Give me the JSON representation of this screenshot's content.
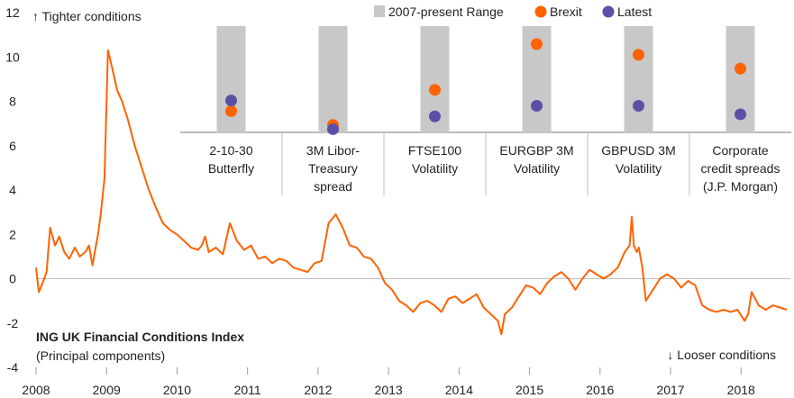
{
  "chart_data": [
    {
      "type": "line",
      "title": "ING UK Financial Conditions Index",
      "subtitle": "(Principal components)",
      "annotation_top": "↑ Tighter conditions",
      "annotation_bottom": "↓ Looser conditions",
      "ylim": [
        -4,
        12
      ],
      "yticks": [
        "-4",
        "-2",
        "0",
        "2",
        "4",
        "6",
        "8",
        "10",
        "12"
      ],
      "xlim": [
        2008.0,
        2018.7
      ],
      "xticks": [
        "2008",
        "2009",
        "2010",
        "2011",
        "2012",
        "2013",
        "2014",
        "2015",
        "2016",
        "2017",
        "2018"
      ],
      "line_color": "#ff6200",
      "series": [
        {
          "x": [
            2008.0,
            2008.04,
            2008.08,
            2008.15,
            2008.2,
            2008.27,
            2008.33,
            2008.4,
            2008.47,
            2008.55,
            2008.62,
            2008.7,
            2008.75,
            2008.8,
            2008.85,
            2008.88,
            2008.92,
            2008.97,
            2009.02,
            2009.08,
            2009.15,
            2009.22,
            2009.3,
            2009.4,
            2009.5,
            2009.6,
            2009.7,
            2009.8,
            2009.9,
            2010.0,
            2010.1,
            2010.2,
            2010.3,
            2010.35,
            2010.4,
            2010.45,
            2010.55,
            2010.65,
            2010.75,
            2010.85,
            2010.95,
            2011.05,
            2011.15,
            2011.25,
            2011.35,
            2011.45,
            2011.55,
            2011.65,
            2011.75,
            2011.85,
            2011.95,
            2012.05,
            2012.15,
            2012.25,
            2012.35,
            2012.45,
            2012.55,
            2012.65,
            2012.75,
            2012.85,
            2012.95,
            2013.05,
            2013.15,
            2013.25,
            2013.35,
            2013.45,
            2013.55,
            2013.65,
            2013.75,
            2013.85,
            2013.95,
            2014.05,
            2014.15,
            2014.25,
            2014.35,
            2014.45,
            2014.55,
            2014.6,
            2014.65,
            2014.75,
            2014.85,
            2014.95,
            2015.05,
            2015.15,
            2015.25,
            2015.35,
            2015.45,
            2015.55,
            2015.65,
            2015.75,
            2015.85,
            2015.95,
            2016.05,
            2016.15,
            2016.25,
            2016.35,
            2016.42,
            2016.45,
            2016.48,
            2016.52,
            2016.55,
            2016.6,
            2016.65,
            2016.75,
            2016.85,
            2016.95,
            2017.05,
            2017.15,
            2017.25,
            2017.35,
            2017.45,
            2017.55,
            2017.65,
            2017.75,
            2017.85,
            2017.95,
            2018.05,
            2018.1,
            2018.15,
            2018.25,
            2018.35,
            2018.45,
            2018.55,
            2018.65
          ],
          "y": [
            0.5,
            -0.6,
            -0.3,
            0.3,
            2.3,
            1.5,
            1.9,
            1.2,
            0.9,
            1.4,
            1.0,
            1.2,
            1.5,
            0.6,
            1.5,
            2.0,
            3.0,
            4.5,
            10.3,
            9.5,
            8.5,
            8.0,
            7.2,
            6.0,
            5.0,
            4.0,
            3.2,
            2.5,
            2.2,
            2.0,
            1.7,
            1.4,
            1.3,
            1.5,
            1.9,
            1.2,
            1.4,
            1.1,
            2.5,
            1.7,
            1.3,
            1.5,
            0.9,
            1.0,
            0.7,
            0.9,
            0.8,
            0.5,
            0.4,
            0.3,
            0.7,
            0.8,
            2.5,
            2.9,
            2.3,
            1.5,
            1.4,
            1.0,
            0.9,
            0.5,
            -0.2,
            -0.5,
            -1.0,
            -1.2,
            -1.5,
            -1.1,
            -1.0,
            -1.2,
            -1.5,
            -0.9,
            -0.8,
            -1.1,
            -0.9,
            -0.7,
            -1.3,
            -1.6,
            -1.9,
            -2.5,
            -1.6,
            -1.3,
            -0.8,
            -0.3,
            -0.4,
            -0.7,
            -0.2,
            0.1,
            0.3,
            0.0,
            -0.5,
            0.0,
            0.4,
            0.2,
            0.0,
            0.2,
            0.5,
            1.2,
            1.5,
            2.8,
            1.5,
            1.2,
            1.4,
            0.5,
            -1.0,
            -0.5,
            0.0,
            0.2,
            0.0,
            -0.4,
            -0.1,
            -0.3,
            -1.2,
            -1.4,
            -1.5,
            -1.4,
            -1.5,
            -1.4,
            -1.9,
            -1.6,
            -0.6,
            -1.2,
            -1.4,
            -1.2,
            -1.3,
            -1.4
          ]
        }
      ]
    },
    {
      "type": "range-dot",
      "legend": [
        {
          "label": "2007-present Range",
          "color": "#c8c8c8",
          "shape": "square"
        },
        {
          "label": "Brexit",
          "color": "#ff6200",
          "shape": "circle"
        },
        {
          "label": "Latest",
          "color": "#5a51a6",
          "shape": "circle"
        }
      ],
      "categories": [
        {
          "lines": [
            "2-10-30",
            "Butterfly"
          ],
          "brexit": 0.2,
          "latest": 0.3
        },
        {
          "lines": [
            "3M Libor-",
            "Treasury",
            "spread"
          ],
          "brexit": 0.07,
          "latest": 0.03
        },
        {
          "lines": [
            "FTSE100",
            "Volatility"
          ],
          "brexit": 0.4,
          "latest": 0.15
        },
        {
          "lines": [
            "EURGBP 3M",
            "Volatility"
          ],
          "brexit": 0.83,
          "latest": 0.25
        },
        {
          "lines": [
            "GBPUSD 3M",
            "Volatility"
          ],
          "brexit": 0.73,
          "latest": 0.25
        },
        {
          "lines": [
            "Corporate",
            "credit spreads",
            "(J.P. Morgan)"
          ],
          "brexit": 0.6,
          "latest": 0.17
        }
      ]
    }
  ]
}
